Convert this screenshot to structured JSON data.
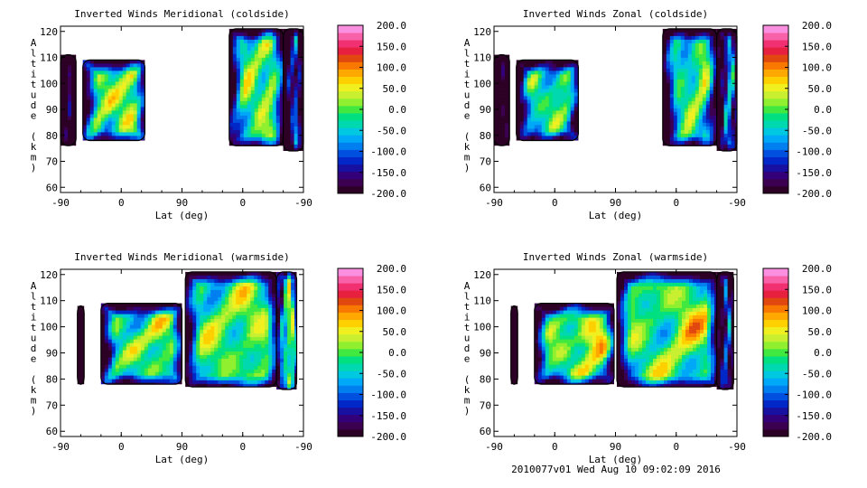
{
  "chart_data": [
    {
      "type": "heatmap",
      "title": "Inverted Winds Meridional (coldside)",
      "xlabel": "Lat (deg)",
      "ylabel": "Altitude (km)",
      "xticks": [
        "-90",
        "0",
        "90",
        "0",
        "-90"
      ],
      "yticks": [
        "60",
        "70",
        "80",
        "90",
        "100",
        "110",
        "120"
      ],
      "ylim": [
        58,
        122
      ],
      "colorbar": {
        "min": -200,
        "max": 200,
        "labels": [
          "200.0",
          "150.0",
          "100.0",
          "50.0",
          "0.0",
          "-50.0",
          "-100.0",
          "-150.0",
          "-200.0"
        ]
      },
      "regions": [
        {
          "x": [
            -90,
            -67
          ],
          "y": [
            76,
            111
          ],
          "base": -100,
          "bias": 0
        },
        {
          "x": [
            -57,
            35
          ],
          "y": [
            78,
            109
          ],
          "base": -5,
          "bias": 60
        },
        {
          "x": [
            160,
            240
          ],
          "y": [
            76,
            121
          ],
          "base": -10,
          "bias": 40
        },
        {
          "x": [
            240,
            270
          ],
          "y": [
            74,
            121
          ],
          "base": -60,
          "bias": 0
        }
      ]
    },
    {
      "type": "heatmap",
      "title": "Inverted Winds Zonal (coldside)",
      "xlabel": "Lat (deg)",
      "ylabel": "Altitude (km)",
      "xticks": [
        "-90",
        "0",
        "90",
        "0",
        "-90"
      ],
      "yticks": [
        "60",
        "70",
        "80",
        "90",
        "100",
        "110",
        "120"
      ],
      "ylim": [
        58,
        122
      ],
      "colorbar": {
        "min": -200,
        "max": 200,
        "labels": [
          "200.0",
          "150.0",
          "100.0",
          "50.0",
          "0.0",
          "-50.0",
          "-100.0",
          "-150.0",
          "-200.0"
        ]
      },
      "regions": [
        {
          "x": [
            -90,
            -67
          ],
          "y": [
            76,
            111
          ],
          "base": -110,
          "bias": 0
        },
        {
          "x": [
            -57,
            35
          ],
          "y": [
            78,
            109
          ],
          "base": -30,
          "bias": 30
        },
        {
          "x": [
            160,
            240
          ],
          "y": [
            76,
            121
          ],
          "base": -30,
          "bias": 50
        },
        {
          "x": [
            240,
            270
          ],
          "y": [
            74,
            121
          ],
          "base": -40,
          "bias": 70
        }
      ]
    },
    {
      "type": "heatmap",
      "title": "Inverted Winds Meridional (warmside)",
      "xlabel": "Lat (deg)",
      "ylabel": "Altitude (km)",
      "xticks": [
        "-90",
        "0",
        "90",
        "0",
        "-90"
      ],
      "yticks": [
        "60",
        "70",
        "80",
        "90",
        "100",
        "110",
        "120"
      ],
      "ylim": [
        58,
        122
      ],
      "colorbar": {
        "min": -200,
        "max": 200,
        "labels": [
          "200.0",
          "150.0",
          "100.0",
          "50.0",
          "0.0",
          "-50.0",
          "-100.0",
          "-150.0",
          "-200.0"
        ]
      },
      "regions": [
        {
          "x": [
            -65,
            -55
          ],
          "y": [
            78,
            108
          ],
          "base": -120,
          "bias": 0
        },
        {
          "x": [
            -30,
            90
          ],
          "y": [
            78,
            109
          ],
          "base": -20,
          "bias": 60
        },
        {
          "x": [
            95,
            230
          ],
          "y": [
            77,
            121
          ],
          "base": -10,
          "bias": 40
        },
        {
          "x": [
            230,
            260
          ],
          "y": [
            76,
            121
          ],
          "base": 40,
          "bias": 90
        }
      ]
    },
    {
      "type": "heatmap",
      "title": "Inverted Winds Zonal (warmside)",
      "xlabel": "Lat (deg)",
      "ylabel": "Altitude (km)",
      "xticks": [
        "-90",
        "0",
        "90",
        "0",
        "-90"
      ],
      "yticks": [
        "60",
        "70",
        "80",
        "90",
        "100",
        "110",
        "120"
      ],
      "ylim": [
        58,
        122
      ],
      "colorbar": {
        "min": -200,
        "max": 200,
        "labels": [
          "200.0",
          "150.0",
          "100.0",
          "50.0",
          "0.0",
          "-50.0",
          "-100.0",
          "-150.0",
          "-200.0"
        ]
      },
      "regions": [
        {
          "x": [
            -65,
            -55
          ],
          "y": [
            78,
            108
          ],
          "base": -120,
          "bias": 0
        },
        {
          "x": [
            -30,
            88
          ],
          "y": [
            78,
            109
          ],
          "base": -10,
          "bias": 90
        },
        {
          "x": [
            92,
            240
          ],
          "y": [
            77,
            121
          ],
          "base": -10,
          "bias": 50
        },
        {
          "x": [
            240,
            265
          ],
          "y": [
            76,
            121
          ],
          "base": -40,
          "bias": 20
        }
      ]
    }
  ],
  "palette": [
    "#2d0025",
    "#3c0050",
    "#33007a",
    "#1810a0",
    "#0028c8",
    "#0050e0",
    "#0080f0",
    "#00a8f8",
    "#00c8e0",
    "#00d8b0",
    "#00e080",
    "#40e840",
    "#90f030",
    "#c8f030",
    "#f0f020",
    "#ffd000",
    "#ffa800",
    "#f87800",
    "#e04810",
    "#e82040",
    "#f03070",
    "#f860a8",
    "#fc90e0"
  ],
  "footer": "2010077v01 Wed Aug 10 09:02:09 2016"
}
